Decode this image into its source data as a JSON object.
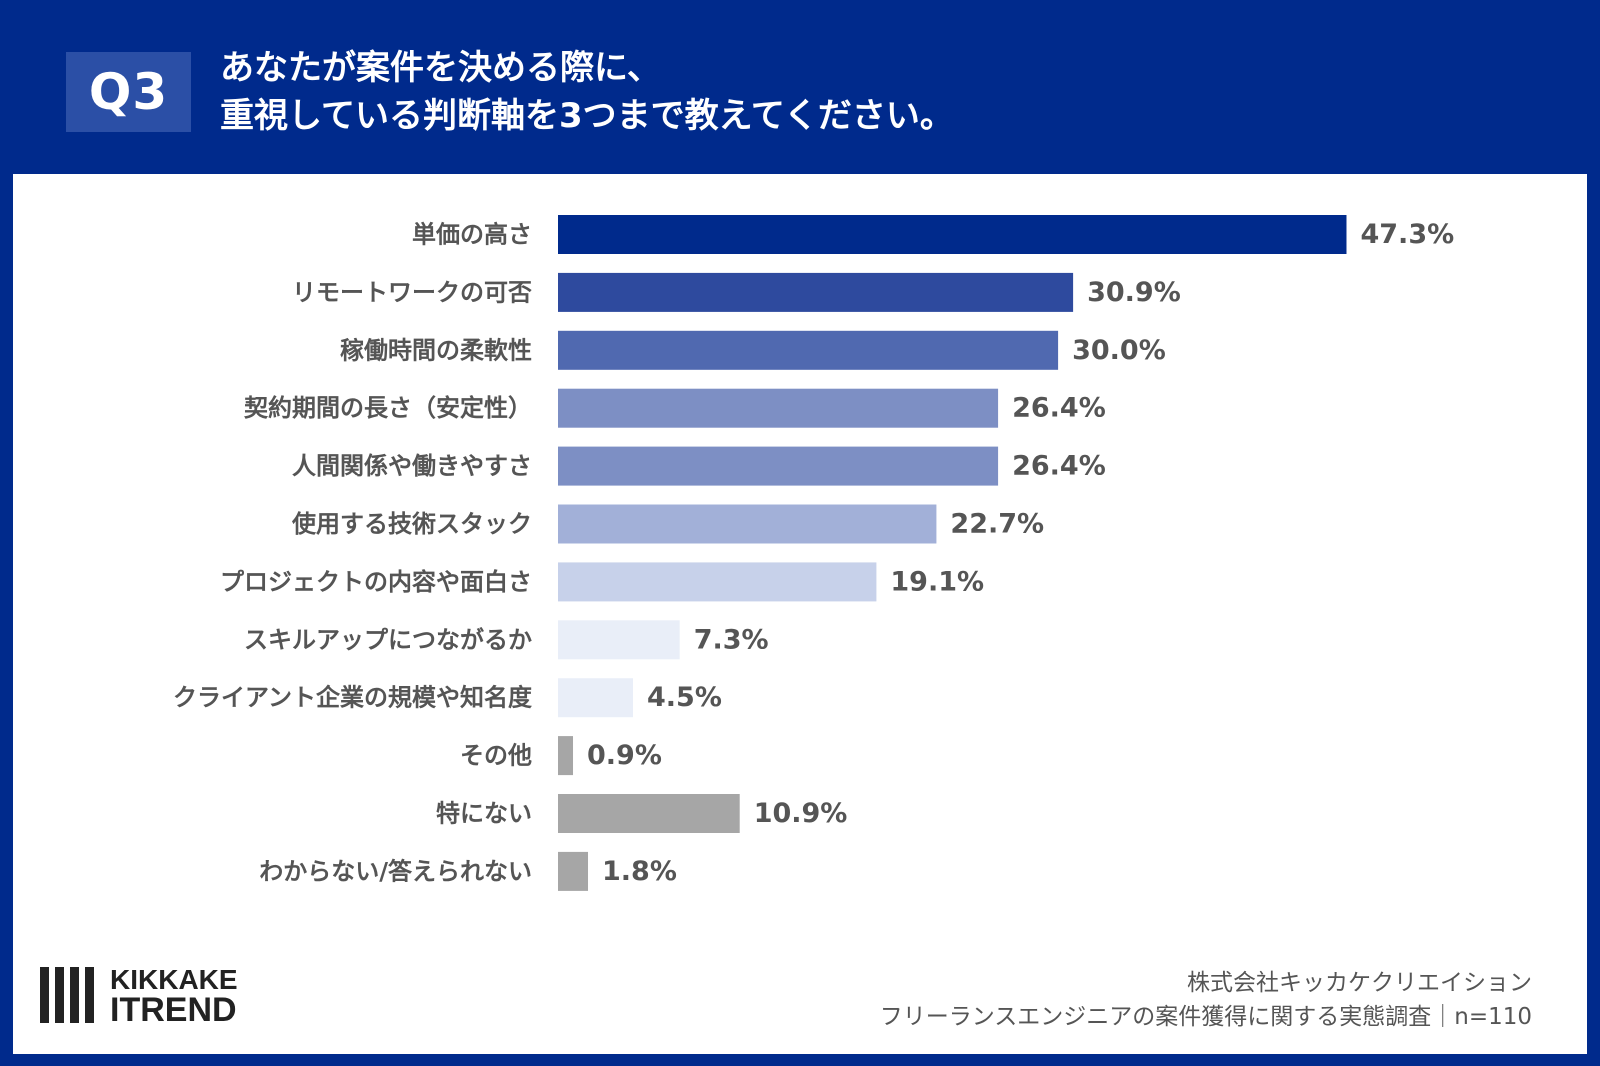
{
  "header": {
    "badge": "Q3",
    "title_line1": "あなたが案件を決める際に、",
    "title_line2": "重視している判断軸を3つまで教えてください。"
  },
  "chart_data": {
    "type": "bar",
    "orientation": "horizontal",
    "title": "あなたが案件を決める際に、重視している判断軸を3つまで教えてください。",
    "categories": [
      "単価の高さ",
      "リモートワークの可否",
      "稼働時間の柔軟性",
      "契約期間の長さ（安定性）",
      "人間関係や働きやすさ",
      "使用する技術スタック",
      "プロジェクトの内容や面白さ",
      "スキルアップにつながるか",
      "クライアント企業の規模や知名度",
      "その他",
      "特にない",
      "わからない/答えられない"
    ],
    "values": [
      47.3,
      30.9,
      30.0,
      26.4,
      26.4,
      22.7,
      19.1,
      7.3,
      4.5,
      0.9,
      10.9,
      1.8
    ],
    "value_labels": [
      "47.3%",
      "30.9%",
      "30.0%",
      "26.4%",
      "26.4%",
      "22.7%",
      "19.1%",
      "7.3%",
      "4.5%",
      "0.9%",
      "10.9%",
      "1.8%"
    ],
    "unit": "%",
    "bar_colors": [
      "#002a8c",
      "#2e4a9e",
      "#5069b0",
      "#7d8fc4",
      "#7d8fc4",
      "#a2b0d8",
      "#c7d1ea",
      "#e9eef8",
      "#e9eef8",
      "#a6a6a6",
      "#a6a6a6",
      "#a6a6a6"
    ],
    "grid": false,
    "legend": "none"
  },
  "logo": {
    "line1": "KIKKAKE",
    "line2": "ITREND"
  },
  "footer": {
    "line1": "株式会社キッカケクリエイション",
    "line2": "フリーランスエンジニアの案件獲得に関する実態調査｜n=110"
  }
}
